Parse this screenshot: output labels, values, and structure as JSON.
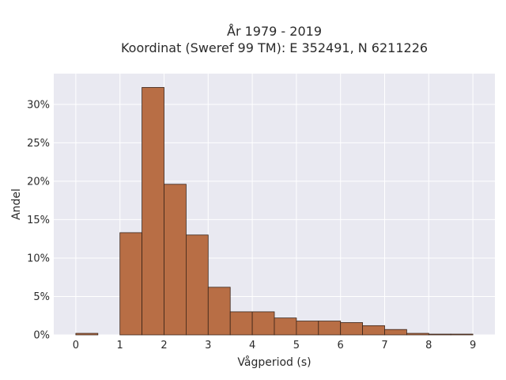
{
  "chart_data": {
    "type": "bar",
    "title_lines": [
      "År 1979 - 2019",
      "Koordinat (Sweref 99 TM): E 352491, N 6211226"
    ],
    "xlabel": "Vågperiod (s)",
    "ylabel": "Andel",
    "bin_width": 0.5,
    "bins": [
      {
        "start": 0.0,
        "value": 0.2
      },
      {
        "start": 0.5,
        "value": 0.0
      },
      {
        "start": 1.0,
        "value": 13.3
      },
      {
        "start": 1.5,
        "value": 32.2
      },
      {
        "start": 2.0,
        "value": 19.6
      },
      {
        "start": 2.5,
        "value": 13.0
      },
      {
        "start": 3.0,
        "value": 6.2
      },
      {
        "start": 3.5,
        "value": 3.0
      },
      {
        "start": 4.0,
        "value": 3.0
      },
      {
        "start": 4.5,
        "value": 2.2
      },
      {
        "start": 5.0,
        "value": 1.8
      },
      {
        "start": 5.5,
        "value": 1.8
      },
      {
        "start": 6.0,
        "value": 1.6
      },
      {
        "start": 6.5,
        "value": 1.2
      },
      {
        "start": 7.0,
        "value": 0.7
      },
      {
        "start": 7.5,
        "value": 0.2
      },
      {
        "start": 8.0,
        "value": 0.1
      },
      {
        "start": 8.5,
        "value": 0.1
      }
    ],
    "xlim": [
      -0.5,
      9.5
    ],
    "ylim": [
      0,
      34
    ],
    "xticks": [
      0,
      1,
      2,
      3,
      4,
      5,
      6,
      7,
      8,
      9
    ],
    "yticks": [
      0,
      5,
      10,
      15,
      20,
      25,
      30
    ],
    "ytick_labels": [
      "0%",
      "5%",
      "10%",
      "15%",
      "20%",
      "25%",
      "30%"
    ],
    "grid": true,
    "colors": {
      "bar_fill": "#b86e45",
      "bar_edge": "#3a2418",
      "plot_bg": "#e9e9f1",
      "grid": "#ffffff"
    }
  }
}
